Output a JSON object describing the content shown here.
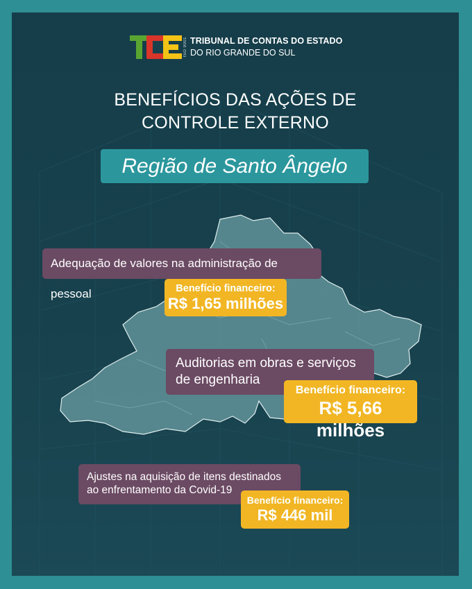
{
  "header": {
    "logo_letters": "TCE",
    "iso": "ISO 9001",
    "org_line1": "TRIBUNAL DE CONTAS DO ESTADO",
    "org_line2": "DO RIO GRANDE DO SUL"
  },
  "title": {
    "line1": "BENEFÍCIOS DAS AÇÕES DE",
    "line2": "CONTROLE EXTERNO"
  },
  "region": "Região de Santo Ângelo",
  "cards": [
    {
      "description": "Adequação de valores na administração de pessoal",
      "benefit_label": "Benefício financeiro:",
      "benefit_value": "R$ 1,65 milhões"
    },
    {
      "description_line1": "Auditorias em obras e serviços",
      "description_line2": "de engenharia",
      "benefit_label": "Benefício financeiro:",
      "benefit_value": "R$ 5,66 milhões"
    },
    {
      "description_line1": "Ajustes na aquisição de itens destinados",
      "description_line2": "ao enfrentamento da Covid-19",
      "benefit_label": "Benefício financeiro:",
      "benefit_value": "R$ 446 mil"
    }
  ],
  "colors": {
    "frame": "#2e8f94",
    "background": "#17414d",
    "region_box": "#2b979d",
    "description_box": "#6b4a63",
    "benefit_box": "#f2b624",
    "map_fill": "#5f8f96",
    "logo_green": "#5aa532",
    "logo_red": "#d9352a",
    "logo_yellow": "#f3c316"
  }
}
